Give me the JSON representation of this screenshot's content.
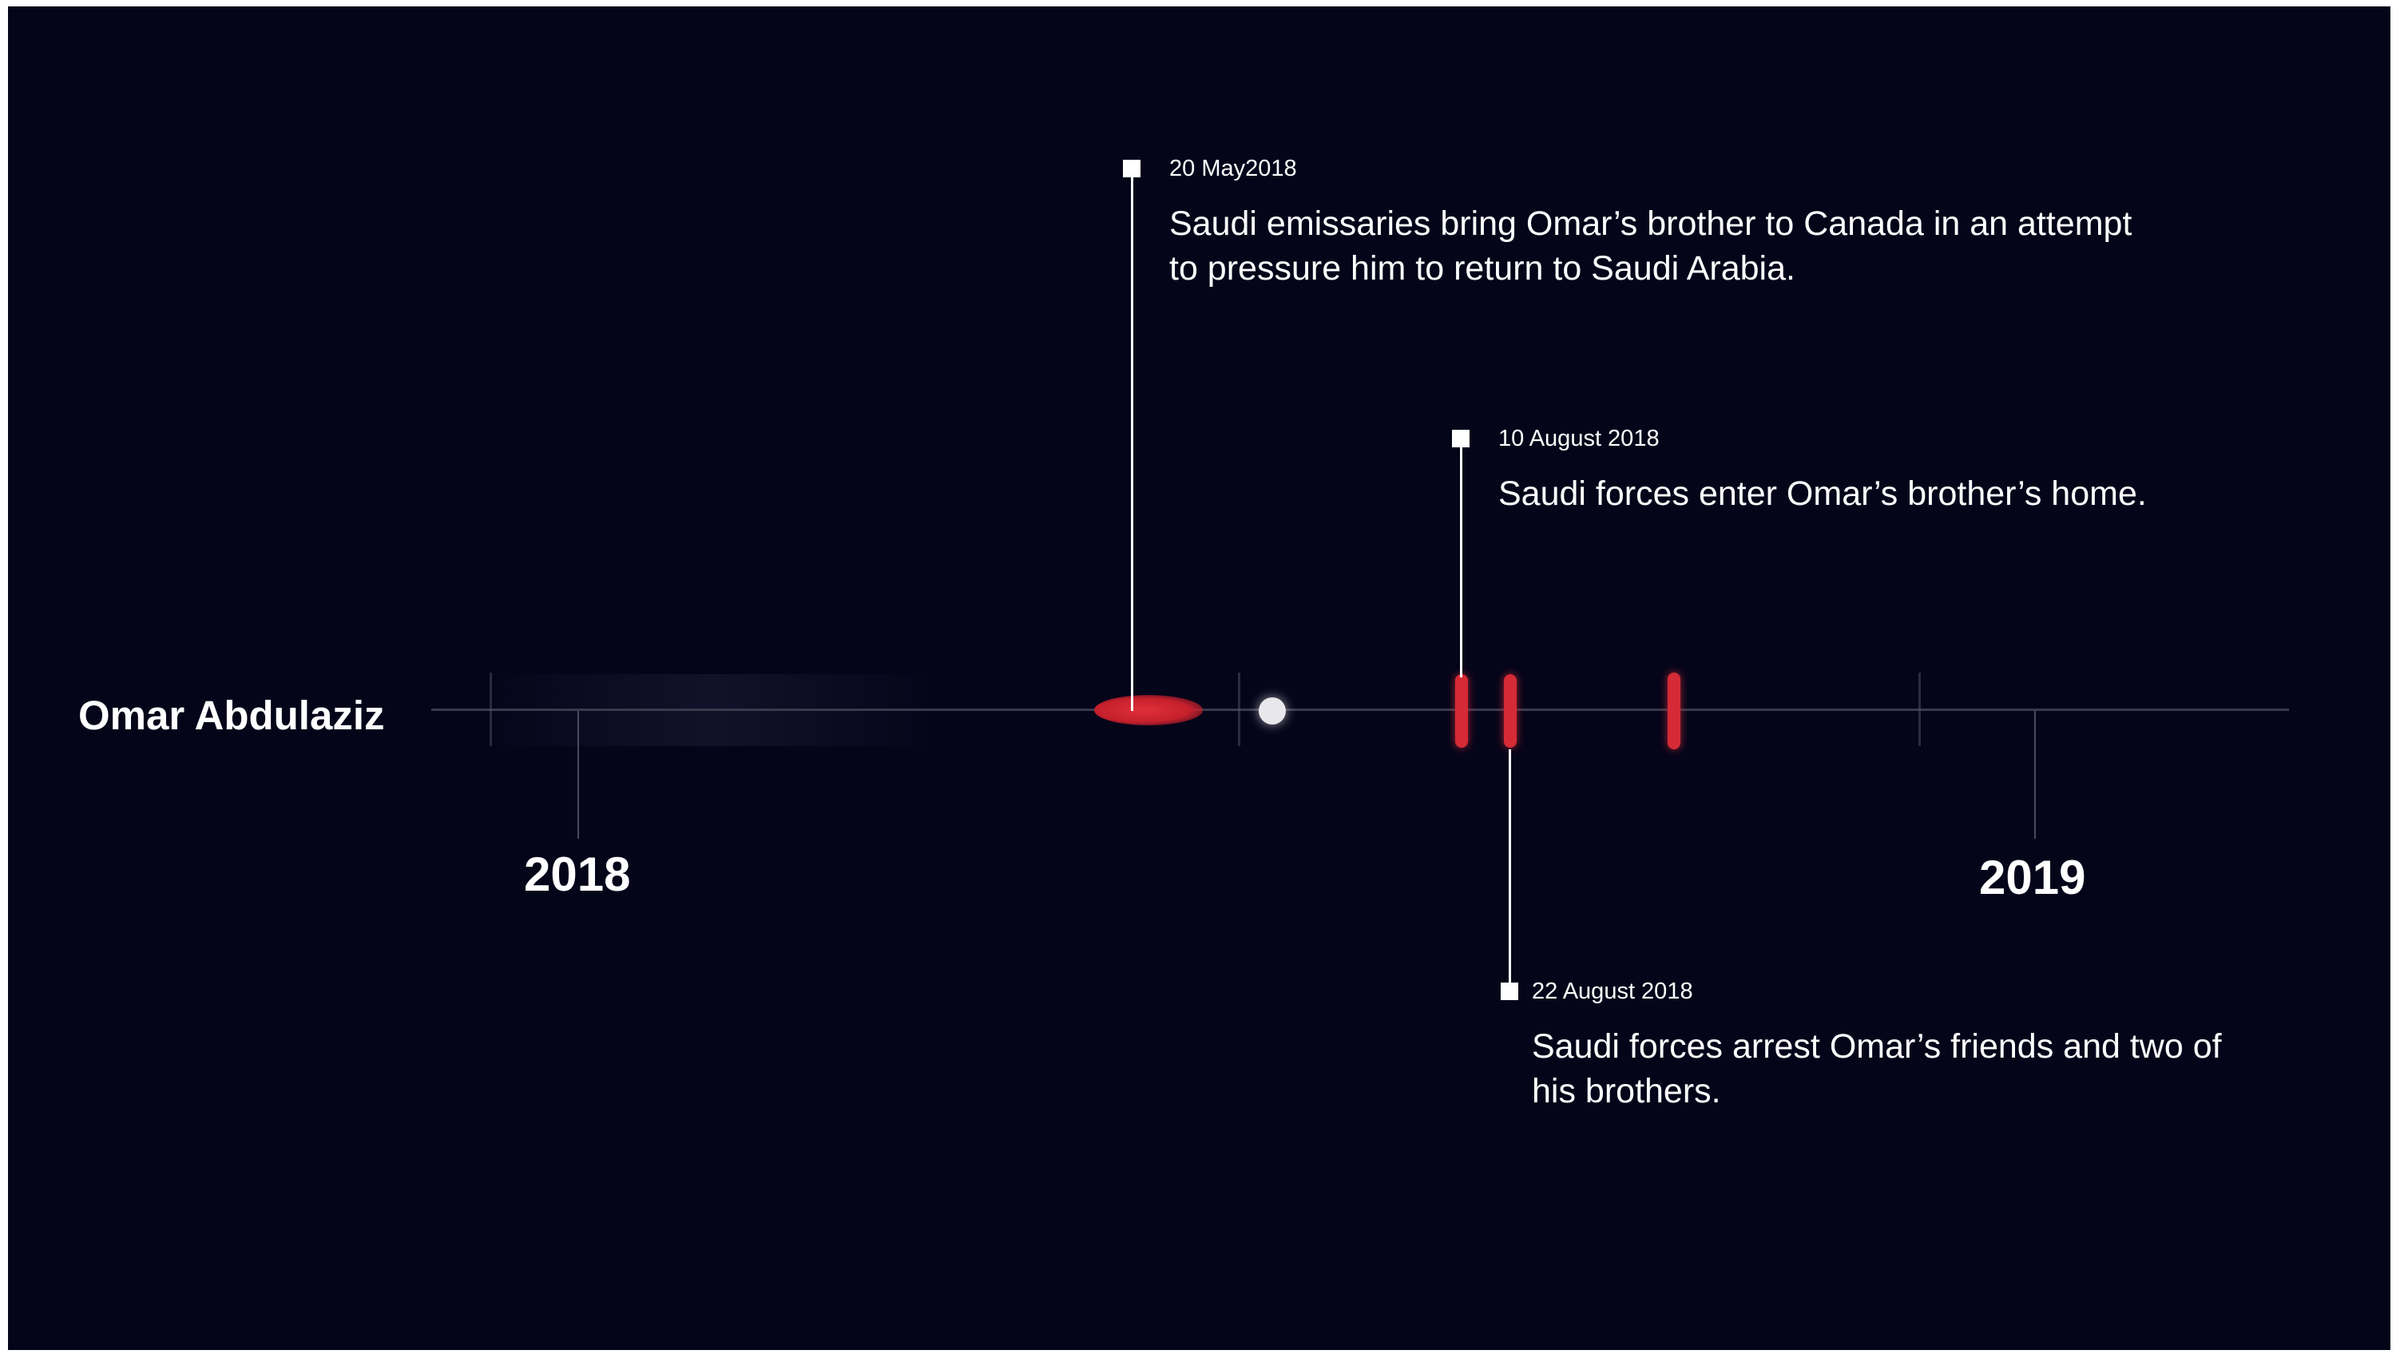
{
  "person": "Omar Abdulaziz",
  "years": [
    "2018",
    "2019"
  ],
  "events": [
    {
      "date": "20 May2018",
      "text": "Saudi emissaries bring Omar’s brother to Canada in an attempt to pressure him to return to Saudi Arabia."
    },
    {
      "date": "10 August 2018",
      "text": "Saudi forces enter Omar’s brother’s home."
    },
    {
      "date": "22 August 2018",
      "text": "Saudi forces arrest Omar’s friends and two of his brothers."
    }
  ],
  "colors": {
    "background": "#05051a",
    "event_mark": "#d42b36",
    "text": "#ffffff",
    "axis": "#3a3a4c"
  }
}
